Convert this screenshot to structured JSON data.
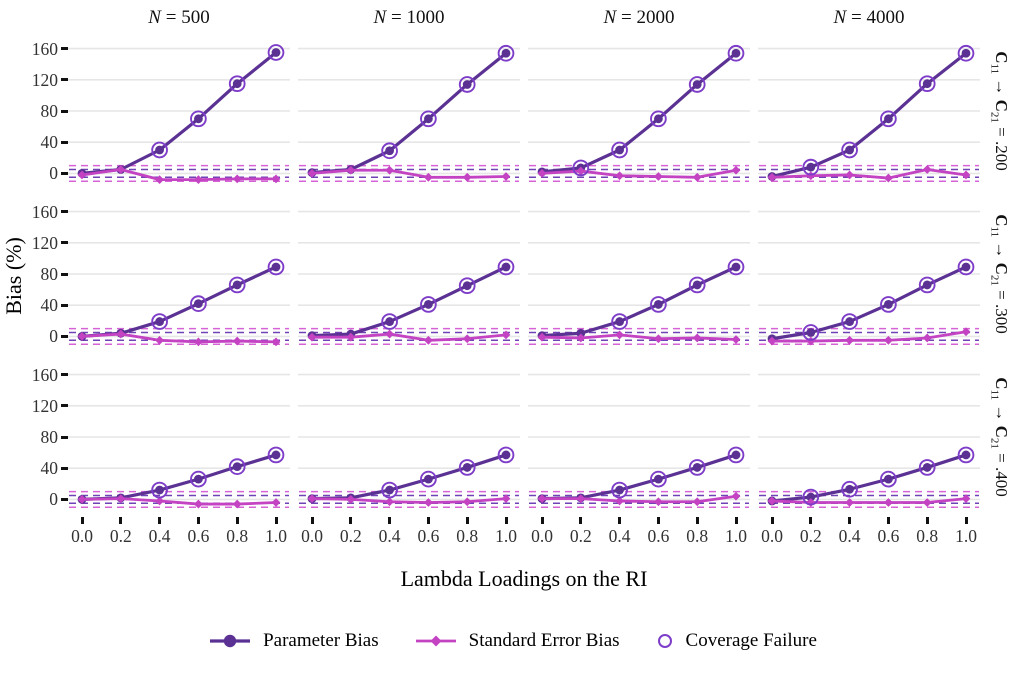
{
  "figure": {
    "y_axis_title": "Bias (%)",
    "x_axis_title": "Lambda Loadings on the RI",
    "column_headers": [
      {
        "variable": "N",
        "eq": "=",
        "value": "500"
      },
      {
        "variable": "N",
        "eq": "=",
        "value": "1000"
      },
      {
        "variable": "N",
        "eq": "=",
        "value": "2000"
      },
      {
        "variable": "N",
        "eq": "=",
        "value": "4000"
      }
    ],
    "row_strips": [
      {
        "lhs": "C",
        "lhs_sub": "11",
        "arrow": "→",
        "rhs": "C",
        "rhs_sub": "21",
        "eq_value": "= .200"
      },
      {
        "lhs": "C",
        "lhs_sub": "11",
        "arrow": "→",
        "rhs": "C",
        "rhs_sub": "21",
        "eq_value": "= .300"
      },
      {
        "lhs": "C",
        "lhs_sub": "11",
        "arrow": "→",
        "rhs": "C",
        "rhs_sub": "21",
        "eq_value": "= .400"
      }
    ]
  },
  "colors": {
    "parameter_bias": "#5b3293",
    "standard_error_bias": "#c343c3",
    "coverage_ring": "#7e3dc8",
    "threshold_magenta": "#d563d5",
    "threshold_purple": "#6f42b5",
    "gridline": "#e6e6e6",
    "tick_text": "#333333",
    "background": "#ffffff"
  },
  "legend": {
    "items": [
      {
        "label": "Parameter Bias",
        "marker": "filled-circle-line"
      },
      {
        "label": "Standard Error Bias",
        "marker": "diamond-line"
      },
      {
        "label": "Coverage Failure",
        "marker": "open-circle"
      }
    ]
  },
  "chart_data": {
    "type": "line",
    "x_label": "Lambda Loadings on the RI",
    "y_label": "Bias (%)",
    "x": [
      0.0,
      0.2,
      0.4,
      0.6,
      0.8,
      1.0
    ],
    "x_tick_labels": [
      "0.0",
      "0.2",
      "0.4",
      "0.6",
      "0.8",
      "1.0"
    ],
    "y_ticks": [
      0,
      40,
      80,
      120,
      160
    ],
    "ylim": [
      -20,
      180
    ],
    "grid": "horizontal-only",
    "threshold_lines": [
      {
        "y": 10,
        "color_key": "threshold_magenta",
        "style": "dashed"
      },
      {
        "y": 5,
        "color_key": "threshold_purple",
        "style": "dashed"
      },
      {
        "y": -5,
        "color_key": "threshold_purple",
        "style": "dashed"
      },
      {
        "y": -10,
        "color_key": "threshold_magenta",
        "style": "dashed"
      }
    ],
    "facet_columns": [
      "N = 500",
      "N = 1000",
      "N = 2000",
      "N = 4000"
    ],
    "facet_rows": [
      "C11 → C21 = .200",
      "C11 → C21 = .300",
      "C11 → C21 = .400"
    ],
    "panels": [
      {
        "row": 0,
        "col": 0,
        "parameter_bias": [
          0,
          5,
          30,
          70,
          115,
          155
        ],
        "standard_error_bias": [
          -2,
          5,
          -8,
          -8,
          -7,
          -7
        ],
        "coverage_failure_x": [
          0.4,
          0.6,
          0.8,
          1.0
        ]
      },
      {
        "row": 0,
        "col": 1,
        "parameter_bias": [
          1,
          5,
          29,
          70,
          114,
          154
        ],
        "standard_error_bias": [
          0,
          4,
          4,
          -5,
          -5,
          -4
        ],
        "coverage_failure_x": [
          0.4,
          0.6,
          0.8,
          1.0
        ]
      },
      {
        "row": 0,
        "col": 2,
        "parameter_bias": [
          2,
          7,
          30,
          70,
          114,
          154
        ],
        "standard_error_bias": [
          0,
          3,
          -3,
          -4,
          -5,
          4
        ],
        "coverage_failure_x": [
          0.2,
          0.4,
          0.6,
          0.8,
          1.0
        ]
      },
      {
        "row": 0,
        "col": 3,
        "parameter_bias": [
          -4,
          8,
          30,
          70,
          115,
          154
        ],
        "standard_error_bias": [
          -5,
          -3,
          -2,
          -6,
          5,
          -2
        ],
        "coverage_failure_x": [
          0.2,
          0.4,
          0.6,
          0.8,
          1.0
        ]
      },
      {
        "row": 1,
        "col": 0,
        "parameter_bias": [
          0,
          4,
          19,
          42,
          66,
          89
        ],
        "standard_error_bias": [
          0,
          3,
          -5,
          -7,
          -6,
          -7
        ],
        "coverage_failure_x": [
          0.4,
          0.6,
          0.8,
          1.0
        ]
      },
      {
        "row": 1,
        "col": 1,
        "parameter_bias": [
          1,
          3,
          19,
          41,
          65,
          89
        ],
        "standard_error_bias": [
          -1,
          -1,
          3,
          -5,
          -3,
          2
        ],
        "coverage_failure_x": [
          0.4,
          0.6,
          0.8,
          1.0
        ]
      },
      {
        "row": 1,
        "col": 2,
        "parameter_bias": [
          1,
          4,
          19,
          41,
          66,
          89
        ],
        "standard_error_bias": [
          -1,
          -2,
          2,
          -3,
          -2,
          -4
        ],
        "coverage_failure_x": [
          0.4,
          0.6,
          0.8,
          1.0
        ]
      },
      {
        "row": 1,
        "col": 3,
        "parameter_bias": [
          -3,
          5,
          19,
          41,
          66,
          89
        ],
        "standard_error_bias": [
          -6,
          -6,
          -5,
          -5,
          -2,
          6
        ],
        "coverage_failure_x": [
          0.2,
          0.4,
          0.6,
          0.8,
          1.0
        ]
      },
      {
        "row": 2,
        "col": 0,
        "parameter_bias": [
          0,
          2,
          12,
          26,
          42,
          57
        ],
        "standard_error_bias": [
          0,
          1,
          -2,
          -6,
          -6,
          -4
        ],
        "coverage_failure_x": [
          0.4,
          0.6,
          0.8,
          1.0
        ]
      },
      {
        "row": 2,
        "col": 1,
        "parameter_bias": [
          1,
          2,
          12,
          26,
          41,
          57
        ],
        "standard_error_bias": [
          1,
          0,
          -3,
          -4,
          -3,
          1
        ],
        "coverage_failure_x": [
          0.4,
          0.6,
          0.8,
          1.0
        ]
      },
      {
        "row": 2,
        "col": 2,
        "parameter_bias": [
          1,
          2,
          12,
          26,
          41,
          57
        ],
        "standard_error_bias": [
          1,
          1,
          -2,
          -3,
          -3,
          4
        ],
        "coverage_failure_x": [
          0.4,
          0.6,
          0.8,
          1.0
        ]
      },
      {
        "row": 2,
        "col": 3,
        "parameter_bias": [
          -2,
          3,
          13,
          26,
          41,
          57
        ],
        "standard_error_bias": [
          -2,
          -4,
          -4,
          -4,
          -4,
          1
        ],
        "coverage_failure_x": [
          0.2,
          0.4,
          0.6,
          0.8,
          1.0
        ]
      }
    ]
  }
}
